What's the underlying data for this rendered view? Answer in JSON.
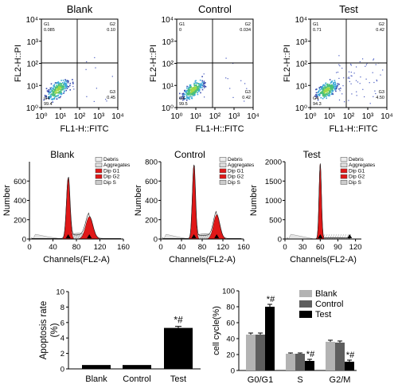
{
  "flow": {
    "ylabel": "FL2-H::PI",
    "xlabel": "FL1-H::FITC",
    "yticks": [
      "10⁰",
      "10¹",
      "10²",
      "10³",
      "10⁴"
    ],
    "xticks": [
      "10⁰",
      "10¹",
      "10²",
      "10³",
      "10⁴"
    ],
    "plots": [
      {
        "title": "Blank",
        "quads": {
          "G1": "G1",
          "G2": "G2",
          "G3": "G3",
          "G4": "G4"
        },
        "values": {
          "G1": "0.085",
          "G2": "0.10",
          "G3": "0.45",
          "G4": "99.4"
        }
      },
      {
        "title": "Control",
        "quads": {
          "G1": "G1",
          "G2": "G2",
          "G3": "G3",
          "G4": "G4"
        },
        "values": {
          "G1": "0",
          "G2": "0.034",
          "G3": "0.42",
          "G4": "99.5"
        }
      },
      {
        "title": "Test",
        "quads": {
          "G1": "G1",
          "G2": "G2",
          "G3": "G3",
          "G4": "G4"
        },
        "values": {
          "G1": "0.71",
          "G2": "0.42",
          "G3": "4.50",
          "G4": "94.3"
        }
      }
    ]
  },
  "cycle": {
    "ylabel": "Number",
    "xlabel": "Channels(FL2-A)",
    "legend": [
      "Debris",
      "Aggregates",
      "Dip G1",
      "Dip G2",
      "Dip S"
    ],
    "plots": [
      {
        "title": "Blank",
        "yticks": [
          "0",
          "200",
          "400",
          "600"
        ],
        "xticks": [
          "0",
          "40",
          "80",
          "120",
          "160"
        ]
      },
      {
        "title": "Control",
        "yticks": [
          "0",
          "200",
          "400",
          "600",
          "800"
        ],
        "xticks": [
          "0",
          "40",
          "80",
          "120",
          "160"
        ]
      },
      {
        "title": "Test",
        "yticks": [
          "0",
          "500",
          "1000",
          "1500",
          "2000"
        ],
        "xticks": [
          "0",
          "30",
          "60",
          "90",
          "120"
        ]
      }
    ]
  },
  "chart_data": [
    {
      "type": "bar",
      "categories": [
        "Blank",
        "Control",
        "Test"
      ],
      "values": [
        0.5,
        0.5,
        5.3
      ],
      "errors": [
        0.05,
        0.05,
        0.2
      ],
      "ylabel": "Apoptosis rate (%)",
      "ylim": [
        0,
        10
      ],
      "yticks": [
        "0",
        "2",
        "4",
        "6",
        "8",
        "10"
      ],
      "annotation": "*#",
      "color": "#000000"
    },
    {
      "type": "bar",
      "categories": [
        "G0/G1",
        "S",
        "G2/M"
      ],
      "series": [
        {
          "name": "Blank",
          "values": [
            45,
            21,
            36
          ],
          "errors": [
            2,
            1,
            2
          ],
          "color": "#b3b3b3"
        },
        {
          "name": "Control",
          "values": [
            45,
            21,
            35
          ],
          "errors": [
            2,
            1,
            2
          ],
          "color": "#5e5e5e"
        },
        {
          "name": "Test",
          "values": [
            80,
            12,
            11
          ],
          "errors": [
            3,
            2,
            2
          ],
          "color": "#000000"
        }
      ],
      "annotations": [
        "*#",
        "*#",
        "*#"
      ],
      "ylabel": "cell cycle(%)",
      "ylim": [
        0,
        100
      ],
      "yticks": [
        "0",
        "20",
        "40",
        "60",
        "80",
        "100"
      ],
      "legend_position": "top-right"
    }
  ]
}
